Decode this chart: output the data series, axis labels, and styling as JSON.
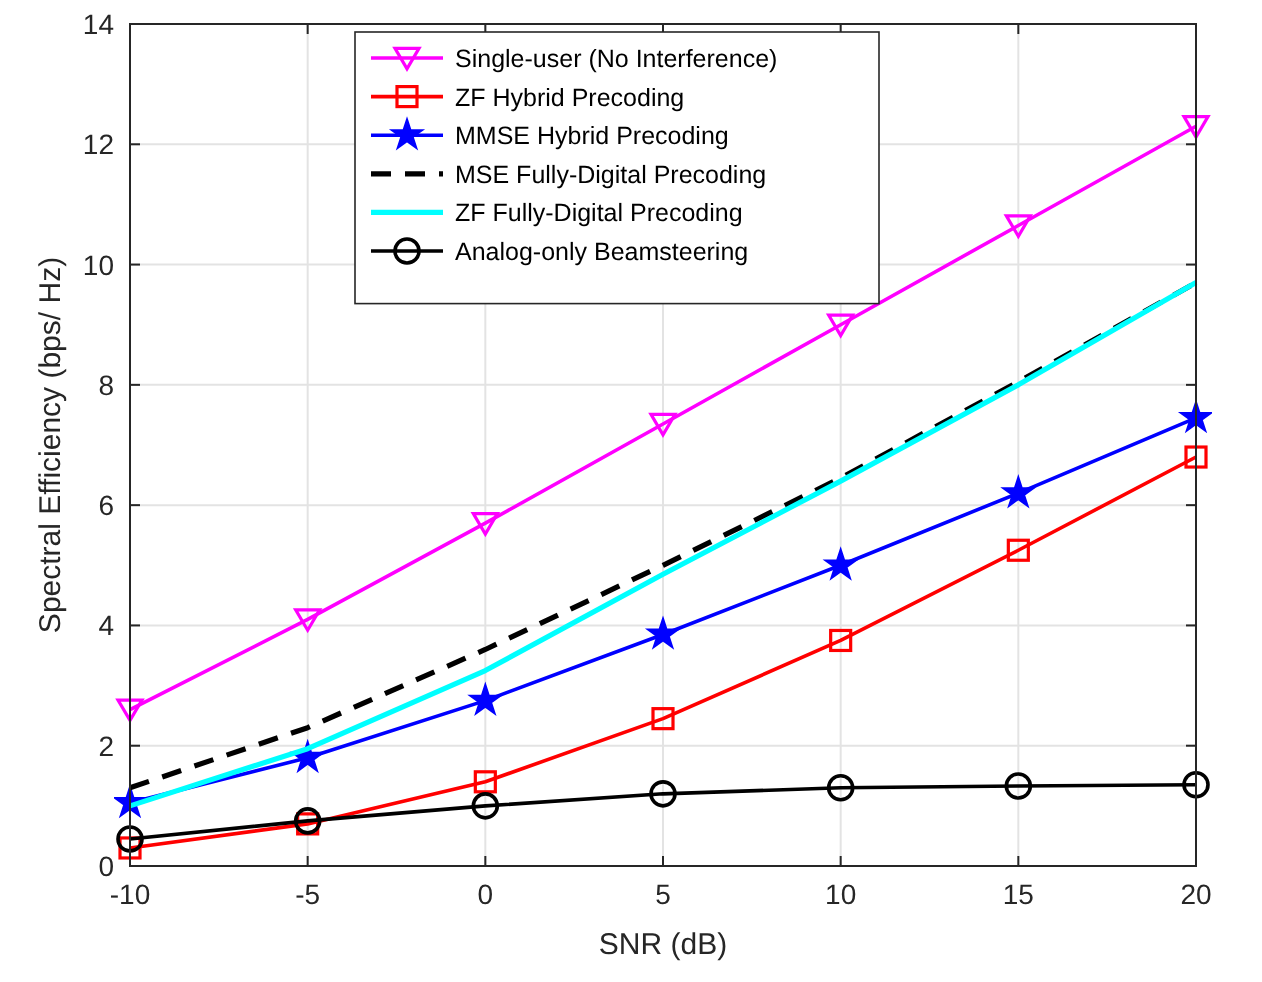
{
  "chart_data": {
    "type": "line",
    "xlabel": "SNR (dB)",
    "ylabel": "Spectral Efficiency (bps/ Hz)",
    "x": [
      -10,
      -5,
      0,
      5,
      10,
      15,
      20
    ],
    "xlim": [
      -10,
      20
    ],
    "xticks": [
      -10,
      -5,
      0,
      5,
      10,
      15,
      20
    ],
    "ylim": [
      0,
      14
    ],
    "yticks": [
      0,
      2,
      4,
      6,
      8,
      10,
      12,
      14
    ],
    "grid": true,
    "legend": "top",
    "series": [
      {
        "name": "Single-user (No Interference)",
        "color": "#ff00ff",
        "marker": "triangle",
        "line_style": "solid",
        "values": [
          2.6,
          4.1,
          5.7,
          7.35,
          9.0,
          10.65,
          12.3
        ]
      },
      {
        "name": "ZF Hybrid Precoding",
        "color": "#ff0000",
        "marker": "square",
        "line_style": "solid",
        "values": [
          0.3,
          0.7,
          1.4,
          2.45,
          3.75,
          5.25,
          6.8
        ]
      },
      {
        "name": "MMSE Hybrid Precoding",
        "color": "#0000ff",
        "marker": "star",
        "line_style": "solid",
        "values": [
          1.05,
          1.8,
          2.75,
          3.85,
          5.0,
          6.2,
          7.45
        ]
      },
      {
        "name": "MSE Fully-Digital Precoding",
        "color": "#000000",
        "marker": "none",
        "line_style": "dashed",
        "values": [
          1.3,
          2.3,
          3.6,
          5.0,
          6.45,
          8.05,
          9.7
        ]
      },
      {
        "name": "ZF Fully-Digital Precoding",
        "color": "#00ffff",
        "marker": "none",
        "line_style": "solid",
        "values": [
          1.0,
          1.95,
          3.25,
          4.85,
          6.4,
          8.0,
          9.7
        ]
      },
      {
        "name": "Analog-only Beamsteering",
        "color": "#000000",
        "marker": "circle",
        "line_style": "solid",
        "values": [
          0.45,
          0.75,
          1.0,
          1.2,
          1.3,
          1.33,
          1.35
        ]
      }
    ]
  }
}
